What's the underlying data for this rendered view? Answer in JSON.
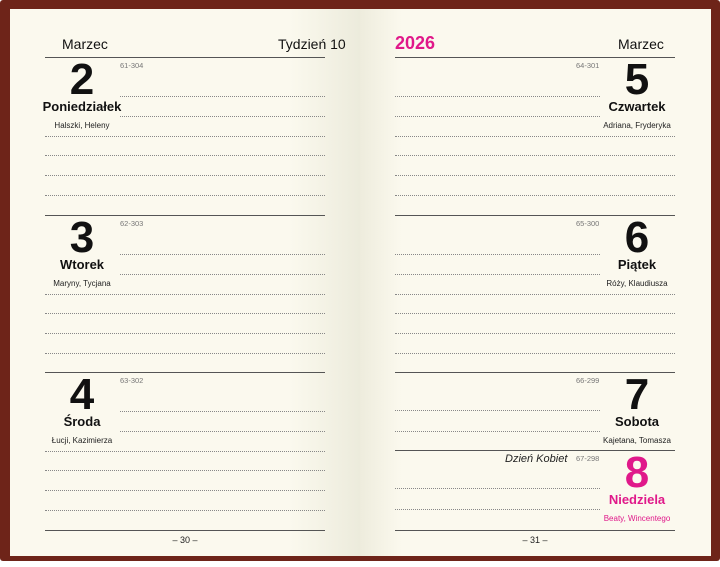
{
  "left_page": {
    "month": "Marzec",
    "week": "Tydzień 10",
    "page_number": "– 30 –",
    "days": [
      {
        "number": "2",
        "name": "Poniedziałek",
        "name_days": "Halszki, Heleny",
        "code": "61-304"
      },
      {
        "number": "3",
        "name": "Wtorek",
        "name_days": "Maryny, Tycjana",
        "code": "62-303"
      },
      {
        "number": "4",
        "name": "Środa",
        "name_days": "Łucji, Kazimierza",
        "code": "63-302"
      }
    ]
  },
  "right_page": {
    "year": "2026",
    "month": "Marzec",
    "page_number": "– 31 –",
    "days": [
      {
        "number": "5",
        "name": "Czwartek",
        "name_days": "Adriana, Fryderyka",
        "code": "64-301"
      },
      {
        "number": "6",
        "name": "Piątek",
        "name_days": "Róży, Klaudiusza",
        "code": "65-300"
      },
      {
        "number": "7",
        "name": "Sobota",
        "name_days": "Kajetana, Tomasza",
        "code": "66-299"
      },
      {
        "number": "8",
        "name": "Niedziela",
        "name_days": "Beaty, Wincentego",
        "code": "67-298",
        "holiday": "Dzień Kobiet",
        "sunday": true
      }
    ]
  },
  "colors": {
    "cover": "#6e2419",
    "paper": "#fbf9ee",
    "sunday": "#e0198a"
  }
}
